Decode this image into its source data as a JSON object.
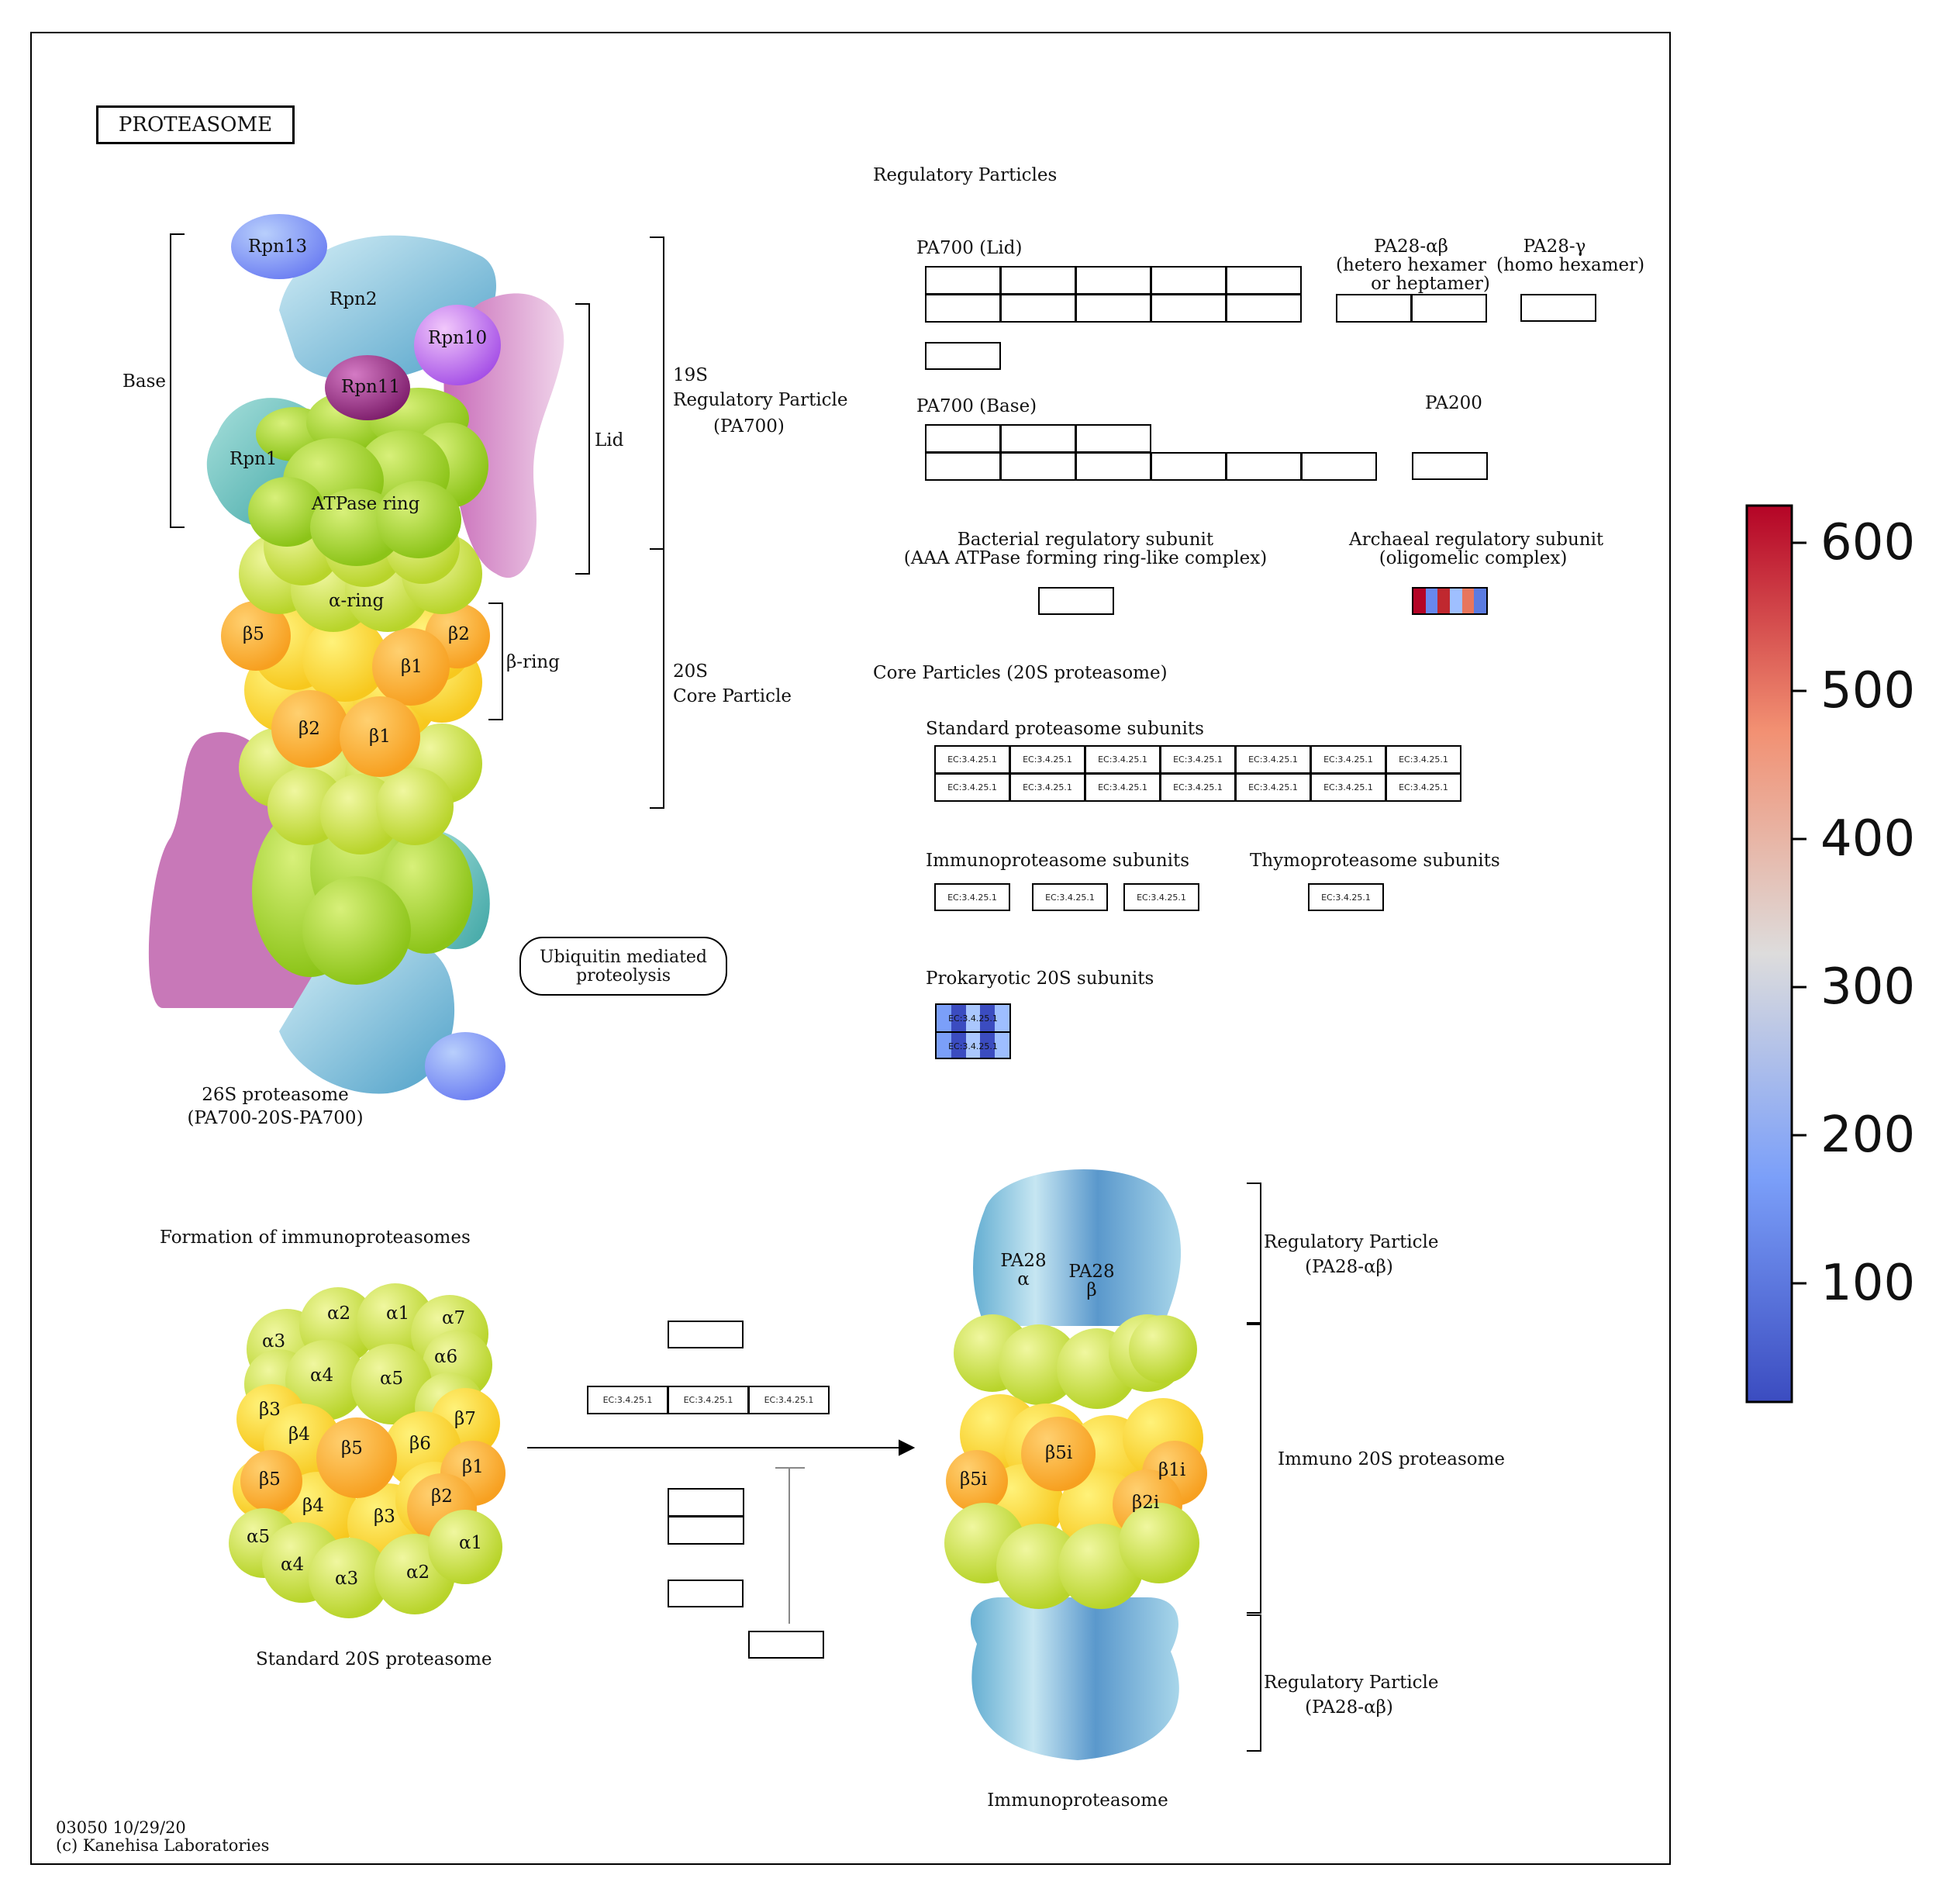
{
  "title": "PROTEASOME",
  "labels": {
    "regulatory_particles": "Regulatory Particles",
    "pa700_lid": "PA700 (Lid)",
    "pa28_ab": [
      "PA28-αβ",
      "(hetero hexamer",
      "or heptamer)"
    ],
    "pa28_g": [
      "PA28-γ",
      "(homo hexamer)"
    ],
    "pa700_base": "PA700 (Base)",
    "pa200": "PA200",
    "bacterial": [
      "Bacterial regulatory subunit",
      "(AAA ATPase forming ring-like complex)"
    ],
    "archaeal": [
      "Archaeal regulatory subunit",
      "(oligomelic complex)"
    ],
    "core_particles": "Core Particles (20S proteasome)",
    "standard_subunits": "Standard proteasome subunits",
    "immuno_subunits": "Immunoproteasome subunits",
    "thymo_subunits": "Thymoproteasome subunits",
    "prokaryotic": "Prokaryotic 20S subunits",
    "ubiquitin": [
      "Ubiquitin mediated",
      "proteolysis"
    ],
    "base": "Base",
    "lid": "Lid",
    "rp19s": [
      "19S",
      "Regulatory Particle",
      "(PA700)"
    ],
    "cp20s": [
      "20S",
      "Core Particle"
    ],
    "beta_ring": "β-ring",
    "alpha_ring": "α-ring",
    "atpase": "ATPase ring",
    "proteasome26s": [
      "26S proteasome",
      "(PA700-20S-PA700)"
    ],
    "formation": "Formation of immunoproteasomes",
    "standard20s": "Standard 20S proteasome",
    "immunoproteasome": "Immunoproteasome",
    "rp_pa28_top": [
      "Regulatory Particle",
      "(PA28-αβ)"
    ],
    "immuno20s": "Immuno 20S proteasome",
    "rp_pa28_bottom": [
      "Regulatory Particle",
      "(PA28-αβ)"
    ],
    "pa28_alpha": [
      "PA28",
      "α"
    ],
    "pa28_beta": [
      "PA28",
      "β"
    ],
    "footer": [
      "03050 10/29/20",
      "(c) Kanehisa Laboratories"
    ]
  },
  "subunits_26s": {
    "rpn13": "Rpn13",
    "rpn2": "Rpn2",
    "rpn10": "Rpn10",
    "rpn11": "Rpn11",
    "rpn1": "Rpn1",
    "b5": "β5",
    "b2a": "β2",
    "b1a": "β1",
    "b2b": "β2",
    "b1b": "β1"
  },
  "subunits_std": [
    "α2",
    "α1",
    "α7",
    "α3",
    "α6",
    "α4",
    "α5",
    "β3",
    "β7",
    "β4",
    "β5",
    "β6",
    "β1",
    "β5",
    "β2",
    "β4",
    "β3",
    "α5",
    "α1",
    "α4",
    "α3",
    "α2"
  ],
  "subunits_immuno": [
    "β5i",
    "β5i",
    "β1i",
    "β2i"
  ],
  "ec_label": "EC:3.4.25.1",
  "colorbar": {
    "ticks": [
      "600",
      "500",
      "400",
      "300",
      "200",
      "100"
    ],
    "min": 0,
    "max": 620,
    "colors": {
      "high": "#b40426",
      "mid": "#dddcdc",
      "low": "#3b4cc0"
    }
  },
  "highlights": {
    "archaeal_stripes": [
      "#b40426",
      "#6788ee",
      "#c0282f",
      "#9fbfff",
      "#e8765c",
      "#5b7be0"
    ],
    "prokaryotic_stripes": [
      "#7b9ff9",
      "#3b4cc0",
      "#aac7fd",
      "#3b4cc0",
      "#9ebeff"
    ]
  }
}
